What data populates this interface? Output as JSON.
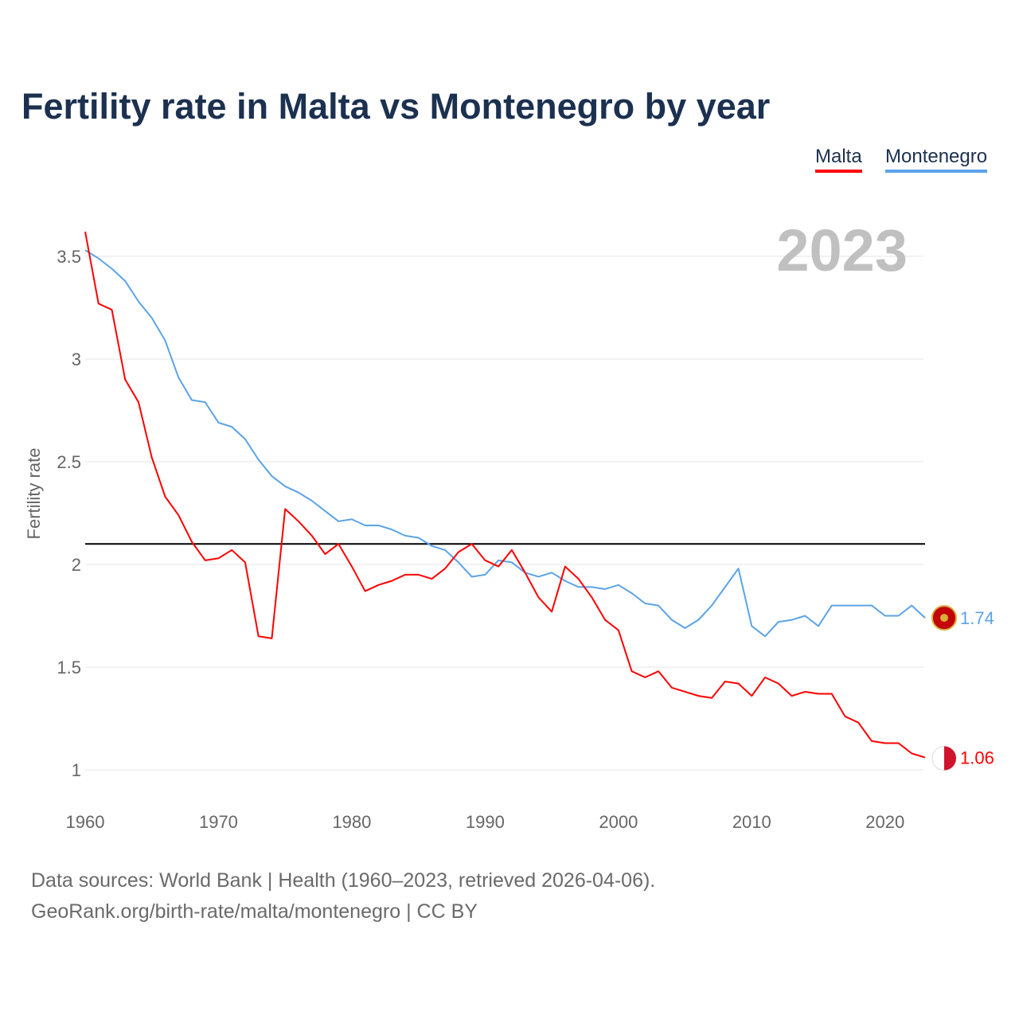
{
  "chart_data": {
    "type": "line",
    "title": "Fertility rate in Malta vs Montenegro by year",
    "xlabel": "",
    "ylabel": "Fertility rate",
    "year_label": "2023",
    "xlim": [
      1960,
      2023
    ],
    "ylim": [
      0.85,
      3.65
    ],
    "x_ticks": [
      "1960",
      "1970",
      "1980",
      "1990",
      "2000",
      "2010",
      "2020"
    ],
    "y_ticks": [
      "1",
      "1.5",
      "2",
      "2.5",
      "3",
      "3.5"
    ],
    "reference_line": 2.1,
    "grid": true,
    "legend_position": "top-right",
    "x": [
      1960,
      1961,
      1962,
      1963,
      1964,
      1965,
      1966,
      1967,
      1968,
      1969,
      1970,
      1971,
      1972,
      1973,
      1974,
      1975,
      1976,
      1977,
      1978,
      1979,
      1980,
      1981,
      1982,
      1983,
      1984,
      1985,
      1986,
      1987,
      1988,
      1989,
      1990,
      1991,
      1992,
      1993,
      1994,
      1995,
      1996,
      1997,
      1998,
      1999,
      2000,
      2001,
      2002,
      2003,
      2004,
      2005,
      2006,
      2007,
      2008,
      2009,
      2010,
      2011,
      2012,
      2013,
      2014,
      2015,
      2016,
      2017,
      2018,
      2019,
      2020,
      2021,
      2022,
      2023
    ],
    "series": [
      {
        "name": "Malta",
        "color": "#ff0000",
        "end_label": "1.06",
        "values": [
          3.62,
          3.27,
          3.24,
          2.9,
          2.79,
          2.52,
          2.33,
          2.24,
          2.11,
          2.02,
          2.03,
          2.07,
          2.01,
          1.65,
          1.64,
          2.27,
          2.21,
          2.14,
          2.05,
          2.1,
          1.99,
          1.87,
          1.9,
          1.92,
          1.95,
          1.95,
          1.93,
          1.98,
          2.06,
          2.1,
          2.02,
          1.99,
          2.07,
          1.96,
          1.84,
          1.77,
          1.99,
          1.93,
          1.84,
          1.73,
          1.68,
          1.48,
          1.45,
          1.48,
          1.4,
          1.38,
          1.36,
          1.35,
          1.43,
          1.42,
          1.36,
          1.45,
          1.42,
          1.36,
          1.38,
          1.37,
          1.37,
          1.26,
          1.23,
          1.14,
          1.13,
          1.13,
          1.08,
          1.06
        ]
      },
      {
        "name": "Montenegro",
        "color": "#5ba3e8",
        "end_label": "1.74",
        "values": [
          3.53,
          3.49,
          3.44,
          3.38,
          3.28,
          3.2,
          3.09,
          2.91,
          2.8,
          2.79,
          2.69,
          2.67,
          2.61,
          2.51,
          2.43,
          2.38,
          2.35,
          2.31,
          2.26,
          2.21,
          2.22,
          2.19,
          2.19,
          2.17,
          2.14,
          2.13,
          2.09,
          2.07,
          2.01,
          1.94,
          1.95,
          2.02,
          2.01,
          1.96,
          1.94,
          1.96,
          1.92,
          1.89,
          1.89,
          1.88,
          1.9,
          1.86,
          1.81,
          1.8,
          1.73,
          1.69,
          1.73,
          1.8,
          1.89,
          1.98,
          1.7,
          1.65,
          1.72,
          1.73,
          1.75,
          1.7,
          1.8,
          1.8,
          1.8,
          1.8,
          1.75,
          1.75,
          1.8,
          1.74
        ]
      }
    ]
  },
  "source": {
    "line1": "Data sources: World Bank | Health (1960–2023, retrieved 2026-04-06).",
    "line2": "GeoRank.org/birth-rate/malta/montenegro | CC BY"
  }
}
